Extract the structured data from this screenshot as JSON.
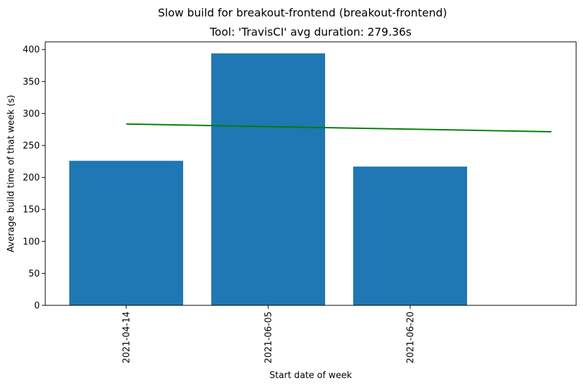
{
  "chart_data": {
    "type": "bar",
    "suptitle": "Slow build for breakout-frontend (breakout-frontend)",
    "title": "Tool: 'TravisCI' avg duration: 279.36s",
    "xlabel": "Start date of week",
    "ylabel": "Average build time of that week (s)",
    "categories": [
      "2021-04-14",
      "2021-06-05",
      "2021-06-20"
    ],
    "values": [
      226,
      394,
      217
    ],
    "bar_color": "#1f77b4",
    "trend_line": {
      "color": "#008000",
      "start": {
        "category_index": 0,
        "y": 283.5
      },
      "end": {
        "category_index": 3,
        "y": 271.5
      }
    },
    "ylim": [
      0,
      412
    ],
    "yticks": [
      0,
      50,
      100,
      150,
      200,
      250,
      300,
      350,
      400
    ],
    "grid": false,
    "legend": "none"
  }
}
